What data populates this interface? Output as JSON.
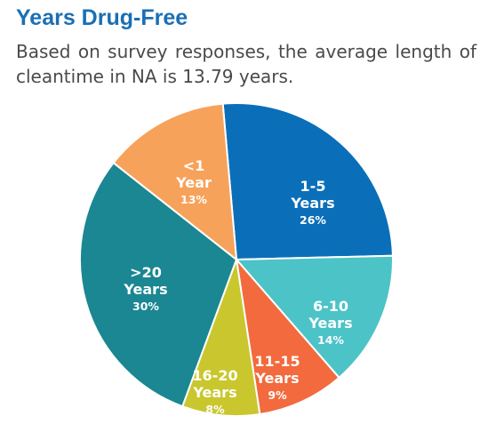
{
  "chart_data": {
    "type": "pie",
    "title": "Years Drug-Free",
    "subtitle": "Based on survey responses, the average length of cleantime in NA is 13.79 years.",
    "slices": [
      {
        "label_lines": [
          "1-5",
          "Years"
        ],
        "percent_label": "26%",
        "value": 26,
        "color": "#0a6fb8"
      },
      {
        "label_lines": [
          "6-10",
          "Years"
        ],
        "percent_label": "14%",
        "value": 14,
        "color": "#4cc3c7"
      },
      {
        "label_lines": [
          "11-15",
          "Years"
        ],
        "percent_label": "9%",
        "value": 9,
        "color": "#f26a3d"
      },
      {
        "label_lines": [
          "16-20",
          "Years"
        ],
        "percent_label": "8%",
        "value": 8,
        "color": "#c9c72d"
      },
      {
        "label_lines": [
          ">20",
          "Years"
        ],
        "percent_label": "30%",
        "value": 30,
        "color": "#1a8792"
      },
      {
        "label_lines": [
          "<1",
          "Year"
        ],
        "percent_label": "13%",
        "value": 13,
        "color": "#f7a25a"
      }
    ]
  }
}
